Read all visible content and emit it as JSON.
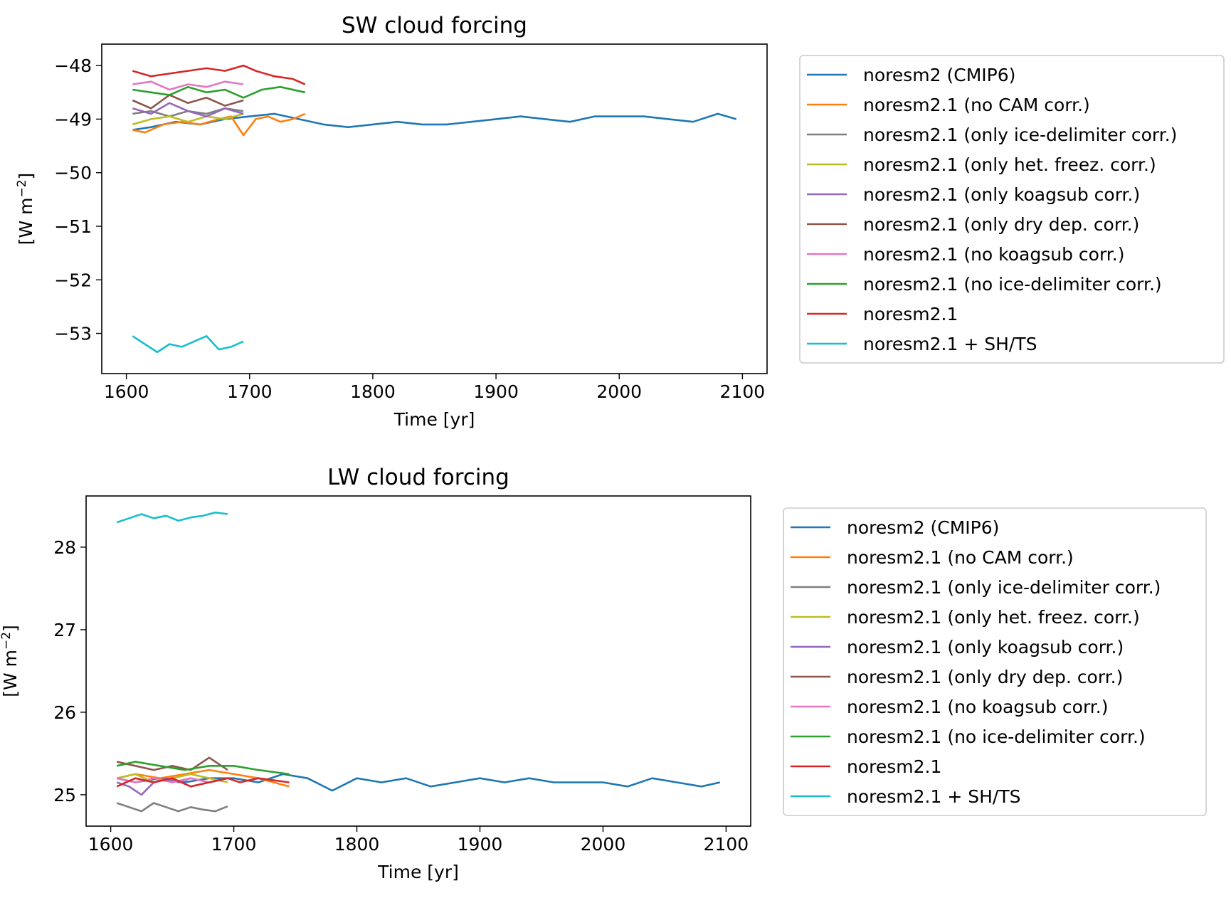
{
  "series_colors": [
    "#1f77b4",
    "#ff7f0e",
    "#7f7f7f",
    "#bcbd22",
    "#9467bd",
    "#8c564b",
    "#e377c2",
    "#2ca02c",
    "#d62728",
    "#17becf"
  ],
  "chart_data": [
    {
      "type": "line",
      "title": "SW cloud forcing",
      "xlabel": "Time [yr]",
      "ylabel": "[W m",
      "ylabel_sup": "−2",
      "ylabel_end": "]",
      "xlim": [
        1580,
        2120
      ],
      "ylim": [
        -53.75,
        -47.6
      ],
      "xticks": [
        1600,
        1700,
        1800,
        1900,
        2000,
        2100
      ],
      "xtick_labels": [
        "1600",
        "1700",
        "1800",
        "1900",
        "2000",
        "2100"
      ],
      "yticks": [
        -48,
        -49,
        -50,
        -51,
        -52,
        -53
      ],
      "ytick_labels": [
        "−48",
        "−49",
        "−50",
        "−51",
        "−52",
        "−53"
      ],
      "legend_position": "outside-right",
      "series": [
        {
          "name": "noresm2 (CMIP6)",
          "x": [
            1605,
            1620,
            1640,
            1660,
            1680,
            1700,
            1720,
            1740,
            1760,
            1780,
            1800,
            1820,
            1840,
            1860,
            1880,
            1900,
            1920,
            1940,
            1960,
            1980,
            2000,
            2020,
            2040,
            2060,
            2080,
            2095
          ],
          "y": [
            -49.2,
            -49.15,
            -49.05,
            -49.1,
            -49.0,
            -48.95,
            -48.9,
            -49.0,
            -49.1,
            -49.15,
            -49.1,
            -49.05,
            -49.1,
            -49.1,
            -49.05,
            -49.0,
            -48.95,
            -49.0,
            -49.05,
            -48.95,
            -48.95,
            -48.95,
            -49.0,
            -49.05,
            -48.9,
            -49.0
          ]
        },
        {
          "name": "noresm2.1 (no CAM corr.)",
          "x": [
            1605,
            1615,
            1630,
            1645,
            1660,
            1675,
            1685,
            1695,
            1705,
            1715,
            1725,
            1735,
            1745
          ],
          "y": [
            -49.2,
            -49.25,
            -49.1,
            -49.05,
            -49.1,
            -49.0,
            -48.95,
            -49.3,
            -49.0,
            -48.95,
            -49.05,
            -49.0,
            -48.9
          ]
        },
        {
          "name": "noresm2.1 (only ice-delimiter corr.)",
          "x": [
            1605,
            1620,
            1635,
            1650,
            1665,
            1680,
            1695
          ],
          "y": [
            -48.9,
            -48.85,
            -48.95,
            -48.85,
            -48.9,
            -48.8,
            -48.85
          ]
        },
        {
          "name": "noresm2.1 (only het. freez. corr.)",
          "x": [
            1605,
            1620,
            1635,
            1650,
            1665,
            1680,
            1695
          ],
          "y": [
            -49.1,
            -49.0,
            -48.95,
            -49.05,
            -48.95,
            -49.0,
            -48.9
          ]
        },
        {
          "name": "noresm2.1 (only koagsub corr.)",
          "x": [
            1605,
            1620,
            1635,
            1650,
            1665,
            1680,
            1695
          ],
          "y": [
            -48.8,
            -48.9,
            -48.7,
            -48.85,
            -48.95,
            -48.8,
            -48.9
          ]
        },
        {
          "name": "noresm2.1 (only dry dep. corr.)",
          "x": [
            1605,
            1620,
            1635,
            1650,
            1665,
            1680,
            1695
          ],
          "y": [
            -48.65,
            -48.8,
            -48.55,
            -48.7,
            -48.6,
            -48.75,
            -48.65
          ]
        },
        {
          "name": "noresm2.1 (no koagsub corr.)",
          "x": [
            1605,
            1620,
            1635,
            1650,
            1665,
            1680,
            1695
          ],
          "y": [
            -48.35,
            -48.3,
            -48.45,
            -48.35,
            -48.4,
            -48.3,
            -48.35
          ]
        },
        {
          "name": "noresm2.1 (no ice-delimiter corr.)",
          "x": [
            1605,
            1620,
            1635,
            1650,
            1665,
            1680,
            1695,
            1710,
            1725,
            1745
          ],
          "y": [
            -48.45,
            -48.5,
            -48.55,
            -48.4,
            -48.5,
            -48.45,
            -48.6,
            -48.45,
            -48.4,
            -48.5
          ]
        },
        {
          "name": "noresm2.1",
          "x": [
            1605,
            1620,
            1635,
            1650,
            1665,
            1680,
            1695,
            1705,
            1720,
            1735,
            1745
          ],
          "y": [
            -48.1,
            -48.2,
            -48.15,
            -48.1,
            -48.05,
            -48.1,
            -48.0,
            -48.1,
            -48.2,
            -48.25,
            -48.35
          ]
        },
        {
          "name": "noresm2.1 + SH/TS",
          "x": [
            1605,
            1615,
            1625,
            1635,
            1645,
            1655,
            1665,
            1675,
            1685,
            1695
          ],
          "y": [
            -53.05,
            -53.2,
            -53.35,
            -53.2,
            -53.25,
            -53.15,
            -53.05,
            -53.3,
            -53.25,
            -53.15
          ]
        }
      ]
    },
    {
      "type": "line",
      "title": "LW cloud forcing",
      "xlabel": "Time [yr]",
      "ylabel": "[W m",
      "ylabel_sup": "−2",
      "ylabel_end": "]",
      "xlim": [
        1580,
        2120
      ],
      "ylim": [
        24.62,
        28.62
      ],
      "xticks": [
        1600,
        1700,
        1800,
        1900,
        2000,
        2100
      ],
      "xtick_labels": [
        "1600",
        "1700",
        "1800",
        "1900",
        "2000",
        "2100"
      ],
      "yticks": [
        25,
        26,
        27,
        28
      ],
      "ytick_labels": [
        "25",
        "26",
        "27",
        "28"
      ],
      "legend_position": "outside-right",
      "series": [
        {
          "name": "noresm2 (CMIP6)",
          "x": [
            1605,
            1620,
            1640,
            1660,
            1680,
            1700,
            1720,
            1740,
            1760,
            1780,
            1800,
            1820,
            1840,
            1860,
            1880,
            1900,
            1920,
            1940,
            1960,
            1980,
            2000,
            2020,
            2040,
            2060,
            2080,
            2095
          ],
          "y": [
            25.2,
            25.15,
            25.2,
            25.15,
            25.2,
            25.2,
            25.15,
            25.25,
            25.2,
            25.05,
            25.2,
            25.15,
            25.2,
            25.1,
            25.15,
            25.2,
            25.15,
            25.2,
            25.15,
            25.15,
            25.15,
            25.1,
            25.2,
            25.15,
            25.1,
            25.15
          ]
        },
        {
          "name": "noresm2.1 (no CAM corr.)",
          "x": [
            1605,
            1620,
            1640,
            1660,
            1680,
            1700,
            1720,
            1745
          ],
          "y": [
            25.2,
            25.25,
            25.2,
            25.25,
            25.3,
            25.25,
            25.2,
            25.1
          ]
        },
        {
          "name": "noresm2.1 (only ice-delimiter corr.)",
          "x": [
            1605,
            1615,
            1625,
            1635,
            1645,
            1655,
            1665,
            1675,
            1685,
            1695
          ],
          "y": [
            24.9,
            24.85,
            24.8,
            24.9,
            24.85,
            24.8,
            24.85,
            24.82,
            24.8,
            24.86
          ]
        },
        {
          "name": "noresm2.1 (only het. freez. corr.)",
          "x": [
            1605,
            1620,
            1635,
            1650,
            1665,
            1680,
            1695
          ],
          "y": [
            25.2,
            25.25,
            25.15,
            25.2,
            25.25,
            25.2,
            25.15
          ]
        },
        {
          "name": "noresm2.1 (only koagsub corr.)",
          "x": [
            1605,
            1615,
            1625,
            1635,
            1645,
            1655,
            1665,
            1680,
            1695
          ],
          "y": [
            25.15,
            25.1,
            25.0,
            25.15,
            25.2,
            25.15,
            25.2,
            25.15,
            25.2
          ]
        },
        {
          "name": "noresm2.1 (only dry dep. corr.)",
          "x": [
            1605,
            1620,
            1635,
            1650,
            1665,
            1680,
            1695
          ],
          "y": [
            25.4,
            25.35,
            25.3,
            25.35,
            25.3,
            25.45,
            25.3
          ]
        },
        {
          "name": "noresm2.1 (no koagsub corr.)",
          "x": [
            1605,
            1620,
            1635,
            1650,
            1665,
            1680,
            1695
          ],
          "y": [
            25.2,
            25.15,
            25.2,
            25.15,
            25.2,
            25.15,
            25.2
          ]
        },
        {
          "name": "noresm2.1 (no ice-delimiter corr.)",
          "x": [
            1605,
            1620,
            1640,
            1660,
            1680,
            1700,
            1720,
            1745
          ],
          "y": [
            25.35,
            25.4,
            25.35,
            25.3,
            25.35,
            25.35,
            25.3,
            25.25
          ]
        },
        {
          "name": "noresm2.1",
          "x": [
            1605,
            1620,
            1635,
            1650,
            1665,
            1680,
            1695,
            1705,
            1720,
            1745
          ],
          "y": [
            25.1,
            25.2,
            25.15,
            25.2,
            25.1,
            25.15,
            25.2,
            25.15,
            25.2,
            25.15
          ]
        },
        {
          "name": "noresm2.1 + SH/TS",
          "x": [
            1605,
            1615,
            1625,
            1635,
            1645,
            1655,
            1665,
            1675,
            1685,
            1695
          ],
          "y": [
            28.3,
            28.35,
            28.4,
            28.35,
            28.38,
            28.32,
            28.36,
            28.38,
            28.42,
            28.4
          ]
        }
      ]
    }
  ]
}
